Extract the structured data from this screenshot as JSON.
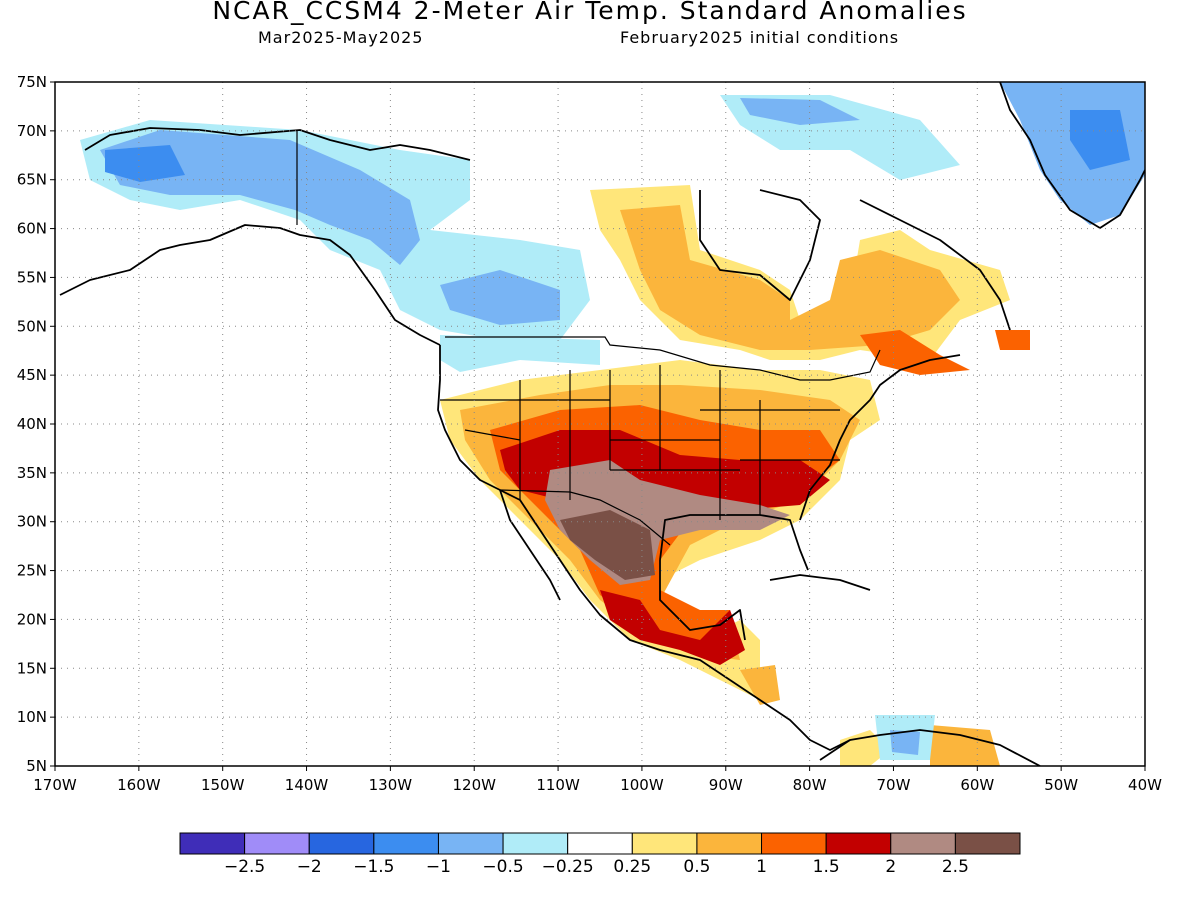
{
  "title": "NCAR_CCSM4 2-Meter Air Temp. Standard Anomalies",
  "subtitle_period": "Mar2025-May2025",
  "subtitle_init": "February2025 initial conditions",
  "lat_labels": [
    "75N",
    "70N",
    "65N",
    "60N",
    "55N",
    "50N",
    "45N",
    "40N",
    "35N",
    "30N",
    "25N",
    "20N",
    "15N",
    "10N",
    "5N"
  ],
  "lon_labels": [
    "170W",
    "160W",
    "150W",
    "140W",
    "130W",
    "120W",
    "110W",
    "100W",
    "90W",
    "80W",
    "70W",
    "60W",
    "50W",
    "40W"
  ],
  "colorbar": {
    "colors": [
      "#3f2db8",
      "#a08cf8",
      "#2766e0",
      "#3c8df0",
      "#78b4f4",
      "#b0ecf8",
      "#ffffff",
      "#ffe67a",
      "#fbb53c",
      "#fb6200",
      "#c20000",
      "#b08a82",
      "#7a5046"
    ],
    "labels": [
      "−2.5",
      "−2",
      "−1.5",
      "−1",
      "−0.5",
      "−0.25",
      "0.25",
      "0.5",
      "1",
      "1.5",
      "2",
      "2.5"
    ]
  }
}
